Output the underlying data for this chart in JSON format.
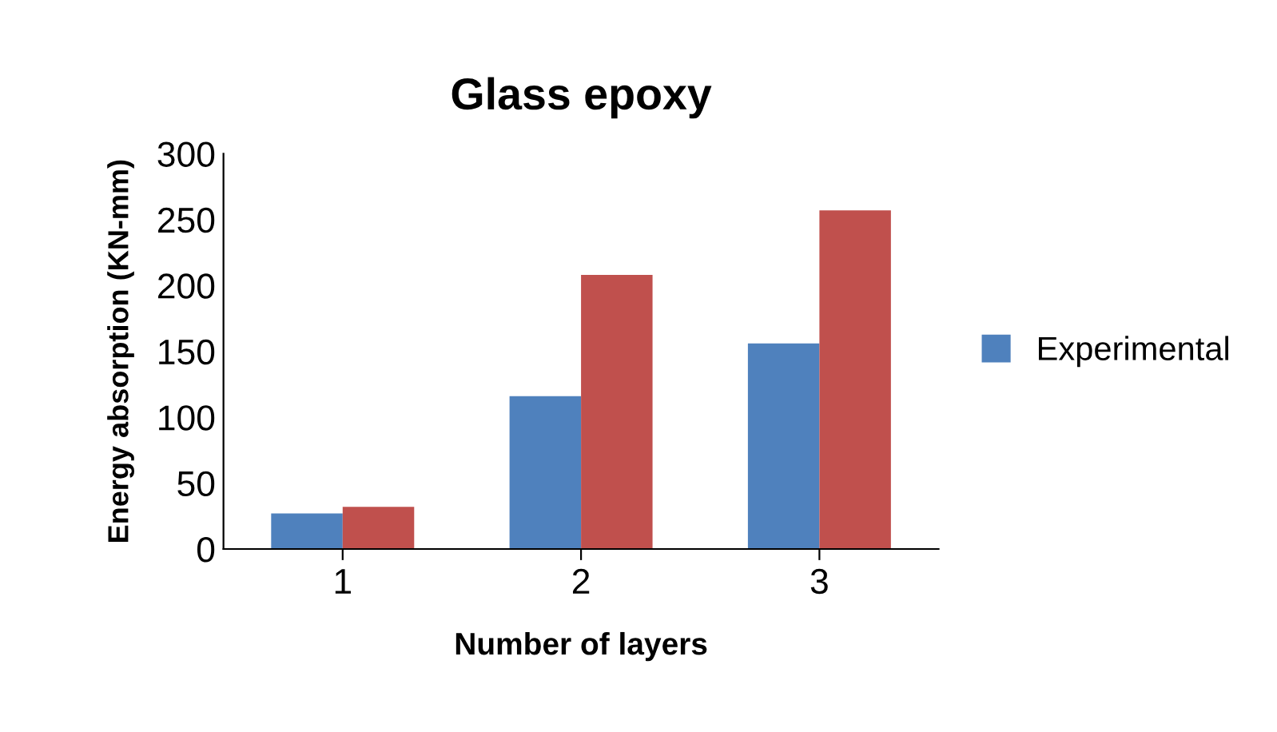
{
  "chart_data": {
    "type": "bar",
    "title": "Glass epoxy",
    "xlabel": "Number of layers",
    "ylabel": "Energy absorption (KN-mm)",
    "categories": [
      "1",
      "2",
      "3"
    ],
    "series": [
      {
        "name": "Experimental",
        "color": "#4f81bd",
        "values": [
          27,
          116,
          156
        ]
      },
      {
        "color": "#c0504d",
        "values": [
          32,
          208,
          257
        ]
      }
    ],
    "ylim": [
      0,
      300
    ],
    "yticks": [
      0,
      50,
      100,
      150,
      200,
      250,
      300
    ],
    "grid": false,
    "legend": "right"
  }
}
